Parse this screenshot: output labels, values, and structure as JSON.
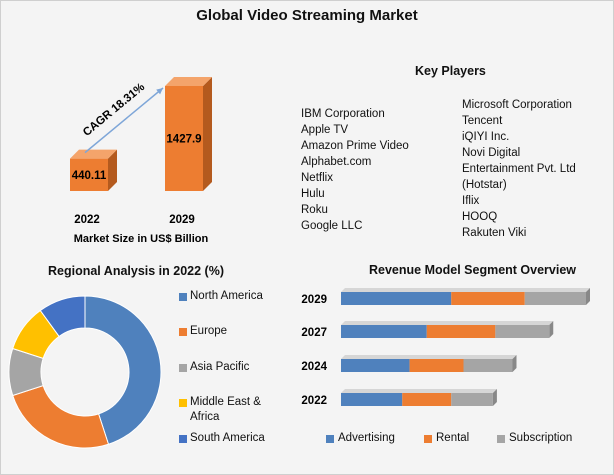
{
  "title": "Global Video Streaming Market",
  "colors": {
    "orange": "#ED7D31",
    "orange_dark": "#B45A1E",
    "blue": "#4F81BD",
    "gray": "#A5A5A5",
    "yellow": "#FFC000",
    "navy": "#4472C4",
    "arrow": "#7EA6D8"
  },
  "market_size": {
    "cagr_label": "CAGR 18.31%",
    "xlabel": "Market Size in US$ Billion"
  },
  "key_players": {
    "title": "Key Players",
    "left": [
      "IBM Corporation",
      "Apple TV",
      "Amazon Prime Video",
      "Alphabet.com",
      "Netflix",
      "Hulu",
      "Roku",
      "Google LLC"
    ],
    "right": [
      "Microsoft Corporation",
      "Tencent",
      "iQIYI Inc.",
      "Novi Digital",
      "Entertainment  Pvt. Ltd",
      "(Hotstar)",
      "Iflix",
      "HOOQ",
      "Rakuten Viki"
    ]
  },
  "regional": {
    "title": "Regional Analysis in 2022 (%)",
    "legend": [
      {
        "label": "North America",
        "color": "#4F81BD"
      },
      {
        "label": "Europe",
        "color": "#ED7D31"
      },
      {
        "label": "Asia Pacific",
        "color": "#A5A5A5"
      },
      {
        "label": "Middle East &",
        "label2": "Africa",
        "color": "#FFC000"
      },
      {
        "label": "South America",
        "color": "#4472C4"
      }
    ]
  },
  "revenue": {
    "title": "Revenue Model Segment Overview",
    "legend": [
      {
        "label": "Advertising",
        "color": "#4F81BD"
      },
      {
        "label": "Rental",
        "color": "#ED7D31"
      },
      {
        "label": "Subscription",
        "color": "#A5A5A5"
      }
    ]
  },
  "chart_data": [
    {
      "type": "bar",
      "categories": [
        "2022",
        "2029"
      ],
      "values": [
        440.11,
        1427.9
      ],
      "xlabel": "Market Size in US$ Billion",
      "annotation": "CAGR 18.31%"
    },
    {
      "type": "pie",
      "title": "Regional Analysis in 2022 (%)",
      "categories": [
        "North America",
        "Europe",
        "Asia Pacific",
        "Middle East & Africa",
        "South America"
      ],
      "values": [
        45,
        25,
        10,
        10,
        10
      ]
    },
    {
      "type": "bar",
      "orientation": "horizontal",
      "stacked": true,
      "title": "Revenue Model Segment Overview",
      "categories": [
        "2029",
        "2027",
        "2024",
        "2022"
      ],
      "series": [
        {
          "name": "Advertising",
          "values": [
            45,
            35,
            28,
            25
          ]
        },
        {
          "name": "Rental",
          "values": [
            30,
            28,
            22,
            20
          ]
        },
        {
          "name": "Subscription",
          "values": [
            25,
            22,
            20,
            17
          ]
        }
      ]
    }
  ]
}
